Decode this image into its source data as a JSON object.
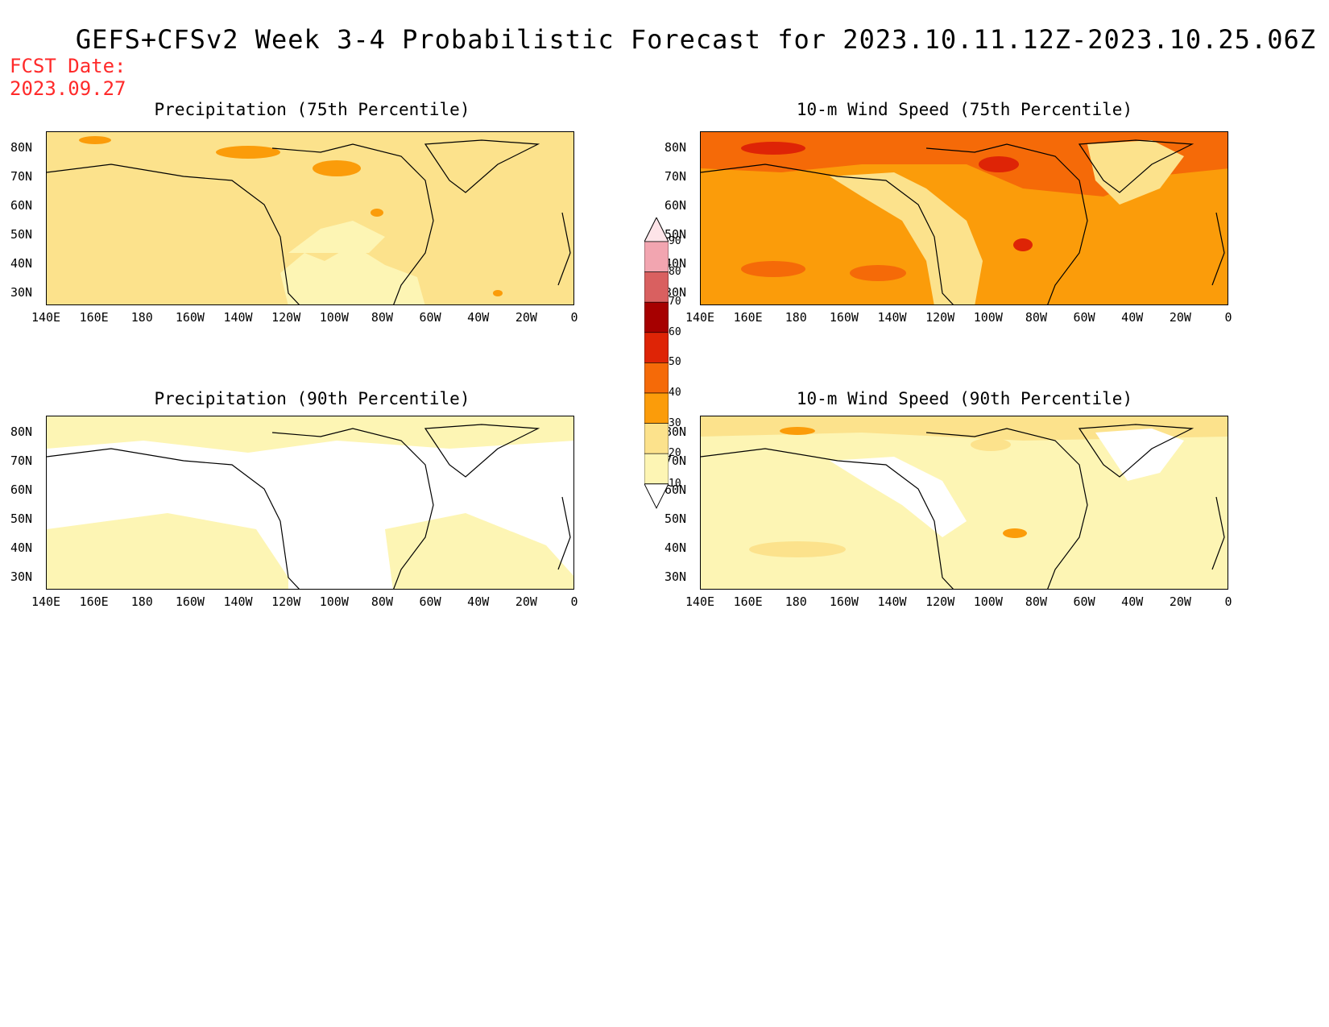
{
  "title": "GEFS+CFSv2 Week 3-4 Probabilistic Forecast for 2023.10.11.12Z-2023.10.25.06Z",
  "fcst": {
    "line1": "FCST Date:",
    "line2": "2023.09.27"
  },
  "panels": [
    {
      "title": "Precipitation (75th Percentile)",
      "base_color": "#fce28c"
    },
    {
      "title": "10-m Wind Speed (75th Percentile)",
      "base_color": "#fb9c0a"
    },
    {
      "title": "Precipitation (90th Percentile)",
      "base_color": "#fdf5b4"
    },
    {
      "title": "10-m Wind Speed (90th Percentile)",
      "base_color": "#fdf5b4"
    }
  ],
  "lat_labels": [
    "80N",
    "70N",
    "60N",
    "50N",
    "40N",
    "30N"
  ],
  "lon_labels": [
    "140E",
    "160E",
    "180",
    "160W",
    "140W",
    "120W",
    "100W",
    "80W",
    "60W",
    "40W",
    "20W",
    "0"
  ],
  "colorbar": {
    "levels": [
      "10",
      "20",
      "30",
      "40",
      "50",
      "60",
      "70",
      "80",
      "90"
    ],
    "colors": [
      "#fdf5b4",
      "#fce28c",
      "#fb9c0a",
      "#f56a08",
      "#de2406",
      "#a60000",
      "#d96060",
      "#f2a5b0",
      "#fde4e8"
    ]
  }
}
